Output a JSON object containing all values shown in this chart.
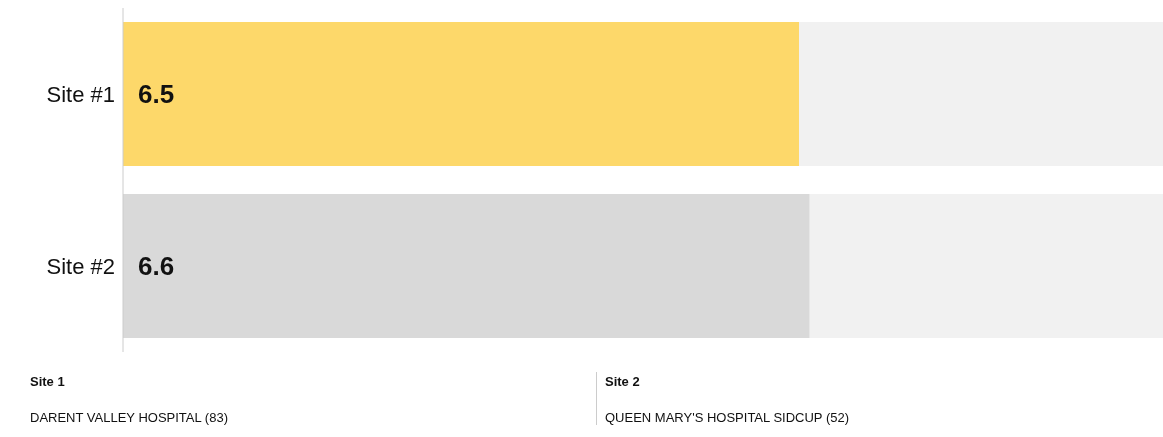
{
  "chart_data": {
    "type": "bar",
    "orientation": "horizontal",
    "categories": [
      "Site #1",
      "Site #2"
    ],
    "values": [
      6.5,
      6.6
    ],
    "colors": [
      "#fdd86a",
      "#d9d9d9"
    ],
    "xlim": [
      0,
      10
    ],
    "tick_labels": "y",
    "data_labels": true,
    "grid": false,
    "annotations": [
      "Site 1",
      "DARENT VALLEY HOSPITAL (83)",
      "Site 2",
      "QUEEN MARY'S HOSPITAL SIDCUP (52)"
    ]
  }
}
